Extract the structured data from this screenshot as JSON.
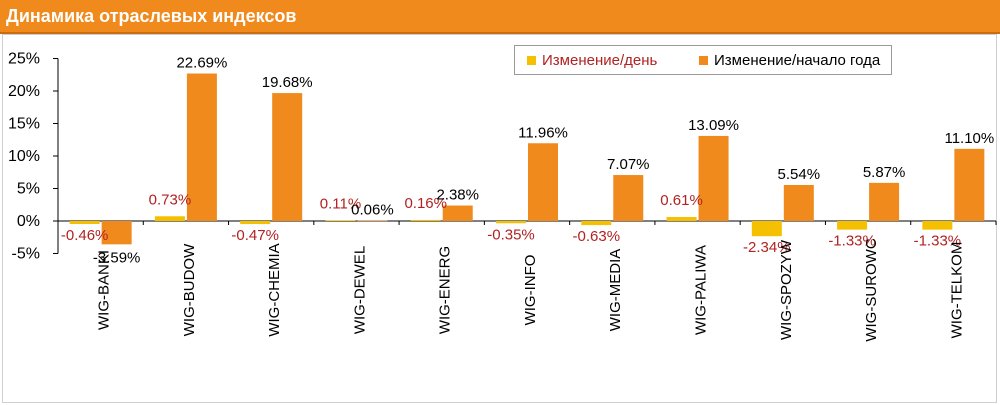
{
  "header": {
    "title": "Динамика отраслевых индексов"
  },
  "colors": {
    "header_bg": "#f08a1d",
    "series_day": "#f5c000",
    "series_ytd": "#f08a1d",
    "day_label": "#b22222"
  },
  "chart_data": {
    "type": "bar",
    "categories": [
      "WIG-BANKI",
      "WIG-BUDOW",
      "WIG-CHEMIA",
      "WIG-DEWEL",
      "WIG-ENERG",
      "WIG-INFO",
      "WIG-MEDIA",
      "WIG-PALIWA",
      "WIG-SPOZYW",
      "WIG-SUROWC",
      "WIG-TELKOM"
    ],
    "series": [
      {
        "name": "Изменение/день",
        "values": [
          -0.46,
          0.73,
          -0.47,
          0.11,
          0.16,
          -0.35,
          -0.63,
          0.61,
          -2.34,
          -1.33,
          -1.33
        ],
        "labels": [
          "-0.46%",
          "0.73%",
          "-0.47%",
          "0.11%",
          "0.16%",
          "-0.35%",
          "-0.63%",
          "0.61%",
          "-2.34%",
          "-1.33%",
          "-1.33%"
        ]
      },
      {
        "name": "Изменение/начало года",
        "values": [
          -3.59,
          22.69,
          19.68,
          0.06,
          2.38,
          11.96,
          7.07,
          13.09,
          5.54,
          5.87,
          11.1
        ],
        "labels": [
          "-3.59%",
          "22.69%",
          "19.68%",
          "0.06%",
          "2.38%",
          "11.96%",
          "7.07%",
          "13.09%",
          "5.54%",
          "5.87%",
          "11.10%"
        ]
      }
    ],
    "yticks": [
      25,
      20,
      15,
      10,
      5,
      0,
      -5
    ],
    "ytick_labels": [
      "25%",
      "20%",
      "15%",
      "10%",
      "5%",
      "0%",
      "-5%"
    ],
    "ylim": [
      -5,
      25
    ],
    "legend_position": "top-right",
    "grid": false
  }
}
